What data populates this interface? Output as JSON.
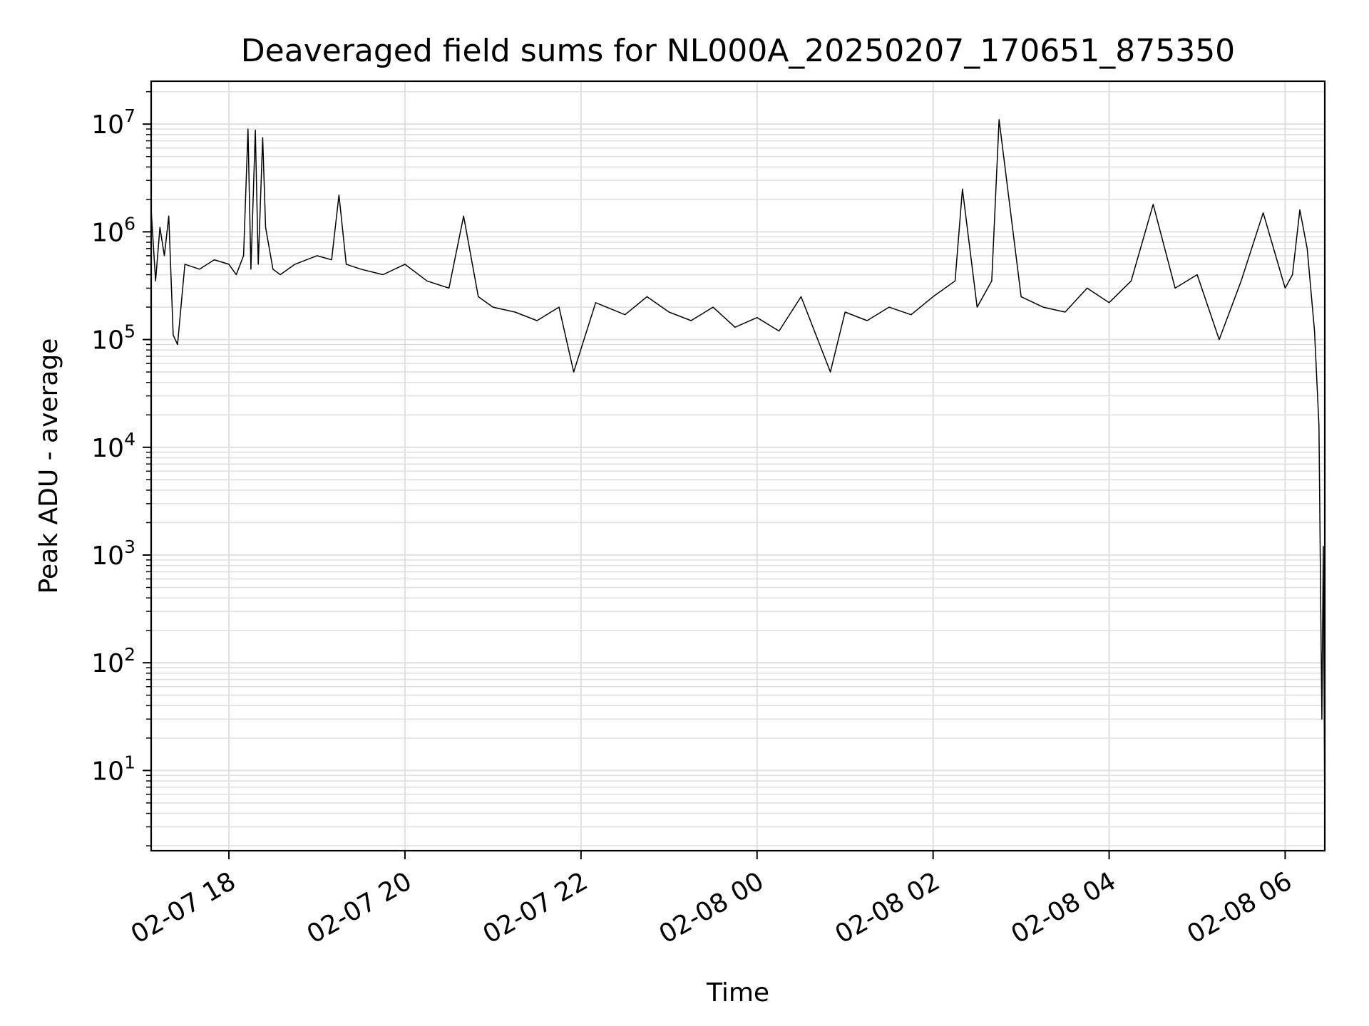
{
  "chart_data": {
    "type": "line",
    "title": "Deaveraged field sums for NL000A_20250207_170651_875350",
    "xlabel": "Time",
    "ylabel": "Peak ADU - average",
    "yscale": "log",
    "ylim": [
      1.8,
      25000000
    ],
    "xlim": [
      "2025-02-07 17:07",
      "2025-02-08 06:27"
    ],
    "grid": true,
    "line_color": "#000000",
    "grid_color": "#e0e0e0",
    "x_ticks": [
      {
        "value": "2025-02-07 18:00",
        "label": "02-07 18"
      },
      {
        "value": "2025-02-07 20:00",
        "label": "02-07 20"
      },
      {
        "value": "2025-02-07 22:00",
        "label": "02-07 22"
      },
      {
        "value": "2025-02-08 00:00",
        "label": "02-08 00"
      },
      {
        "value": "2025-02-08 02:00",
        "label": "02-08 02"
      },
      {
        "value": "2025-02-08 04:00",
        "label": "02-08 04"
      },
      {
        "value": "2025-02-08 06:00",
        "label": "02-08 06"
      }
    ],
    "y_ticks": [
      {
        "value": 10,
        "base": "10",
        "exp": "1"
      },
      {
        "value": 100,
        "base": "10",
        "exp": "2"
      },
      {
        "value": 1000,
        "base": "10",
        "exp": "3"
      },
      {
        "value": 10000,
        "base": "10",
        "exp": "4"
      },
      {
        "value": 100000,
        "base": "10",
        "exp": "5"
      },
      {
        "value": 1000000,
        "base": "10",
        "exp": "6"
      },
      {
        "value": 10000000,
        "base": "10",
        "exp": "7"
      }
    ],
    "series": [
      {
        "x": [
          "2025-02-07 17:07",
          "2025-02-07 17:10",
          "2025-02-07 17:13",
          "2025-02-07 17:16",
          "2025-02-07 17:19",
          "2025-02-07 17:22",
          "2025-02-07 17:25",
          "2025-02-07 17:30",
          "2025-02-07 17:40",
          "2025-02-07 17:50",
          "2025-02-07 18:00",
          "2025-02-07 18:05",
          "2025-02-07 18:10",
          "2025-02-07 18:13",
          "2025-02-07 18:15",
          "2025-02-07 18:18",
          "2025-02-07 18:20",
          "2025-02-07 18:23",
          "2025-02-07 18:25",
          "2025-02-07 18:30",
          "2025-02-07 18:35",
          "2025-02-07 18:45",
          "2025-02-07 19:00",
          "2025-02-07 19:10",
          "2025-02-07 19:15",
          "2025-02-07 19:20",
          "2025-02-07 19:30",
          "2025-02-07 19:45",
          "2025-02-07 20:00",
          "2025-02-07 20:15",
          "2025-02-07 20:30",
          "2025-02-07 20:40",
          "2025-02-07 20:50",
          "2025-02-07 21:00",
          "2025-02-07 21:15",
          "2025-02-07 21:30",
          "2025-02-07 21:45",
          "2025-02-07 21:55",
          "2025-02-07 22:10",
          "2025-02-07 22:30",
          "2025-02-07 22:45",
          "2025-02-07 23:00",
          "2025-02-07 23:15",
          "2025-02-07 23:30",
          "2025-02-07 23:45",
          "2025-02-08 00:00",
          "2025-02-08 00:15",
          "2025-02-08 00:30",
          "2025-02-08 00:50",
          "2025-02-08 01:00",
          "2025-02-08 01:15",
          "2025-02-08 01:30",
          "2025-02-08 01:45",
          "2025-02-08 02:00",
          "2025-02-08 02:15",
          "2025-02-08 02:20",
          "2025-02-08 02:30",
          "2025-02-08 02:40",
          "2025-02-08 02:45",
          "2025-02-08 03:00",
          "2025-02-08 03:15",
          "2025-02-08 03:30",
          "2025-02-08 03:45",
          "2025-02-08 04:00",
          "2025-02-08 04:15",
          "2025-02-08 04:30",
          "2025-02-08 04:45",
          "2025-02-08 05:00",
          "2025-02-08 05:15",
          "2025-02-08 05:30",
          "2025-02-08 05:45",
          "2025-02-08 06:00",
          "2025-02-08 06:05",
          "2025-02-08 06:10",
          "2025-02-08 06:15",
          "2025-02-08 06:20",
          "2025-02-08 06:23",
          "2025-02-08 06:25",
          "2025-02-08 06:26",
          "2025-02-08 06:27"
        ],
        "y": [
          1600000,
          350000,
          1100000,
          600000,
          1400000,
          110000,
          90000,
          500000,
          450000,
          550000,
          500000,
          400000,
          600000,
          9000000,
          450000,
          8800000,
          500000,
          7500000,
          1100000,
          450000,
          400000,
          500000,
          600000,
          550000,
          2200000,
          500000,
          450000,
          400000,
          500000,
          350000,
          300000,
          1400000,
          250000,
          200000,
          180000,
          150000,
          200000,
          50000,
          220000,
          170000,
          250000,
          180000,
          150000,
          200000,
          130000,
          160000,
          120000,
          250000,
          50000,
          180000,
          150000,
          200000,
          170000,
          250000,
          350000,
          2500000,
          200000,
          350000,
          11000000,
          250000,
          200000,
          180000,
          300000,
          220000,
          350000,
          1800000,
          300000,
          400000,
          100000,
          350000,
          1500000,
          300000,
          400000,
          1600000,
          700000,
          120000,
          16000,
          30,
          1200,
          4
        ]
      }
    ]
  }
}
